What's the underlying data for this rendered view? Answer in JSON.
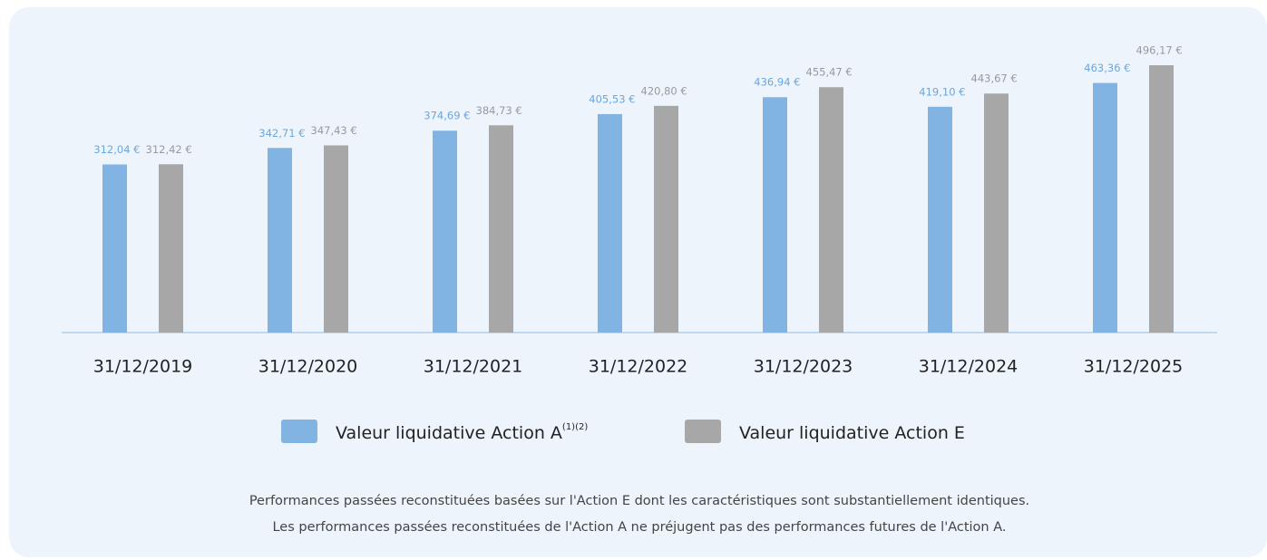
{
  "chart_data": {
    "type": "bar",
    "categories": [
      "31/12/2019",
      "31/12/2020",
      "31/12/2021",
      "31/12/2022",
      "31/12/2023",
      "31/12/2024",
      "31/12/2025"
    ],
    "series": [
      {
        "name": "Valeur liquidative Action A",
        "name_superscript": "(1)(2)",
        "color": "#82b4e3",
        "label_color": "#6aa7de",
        "values": [
          312.04,
          342.71,
          374.69,
          405.53,
          436.94,
          419.1,
          463.36
        ],
        "value_labels": [
          "312,04 €",
          "342,71 €",
          "374,69 €",
          "405,53 €",
          "436,94 €",
          "419,10 €",
          "463,36 €"
        ]
      },
      {
        "name": "Valeur liquidative Action E",
        "color": "#a7a7a7",
        "label_color": "#9a9a9a",
        "values": [
          312.42,
          347.43,
          384.73,
          420.8,
          455.47,
          443.67,
          496.17
        ],
        "value_labels": [
          "312,42 €",
          "347,43 €",
          "384,73 €",
          "420,80 €",
          "455,47 €",
          "443,67 €",
          "496,17 €"
        ]
      }
    ],
    "notes": [
      "Performances passées reconstituées basées sur l'Action E dont les caractéristiques sont substantiellement identiques.",
      "Les performances passées reconstituées de l'Action A ne préjugent pas des performances futures de l'Action A."
    ]
  }
}
